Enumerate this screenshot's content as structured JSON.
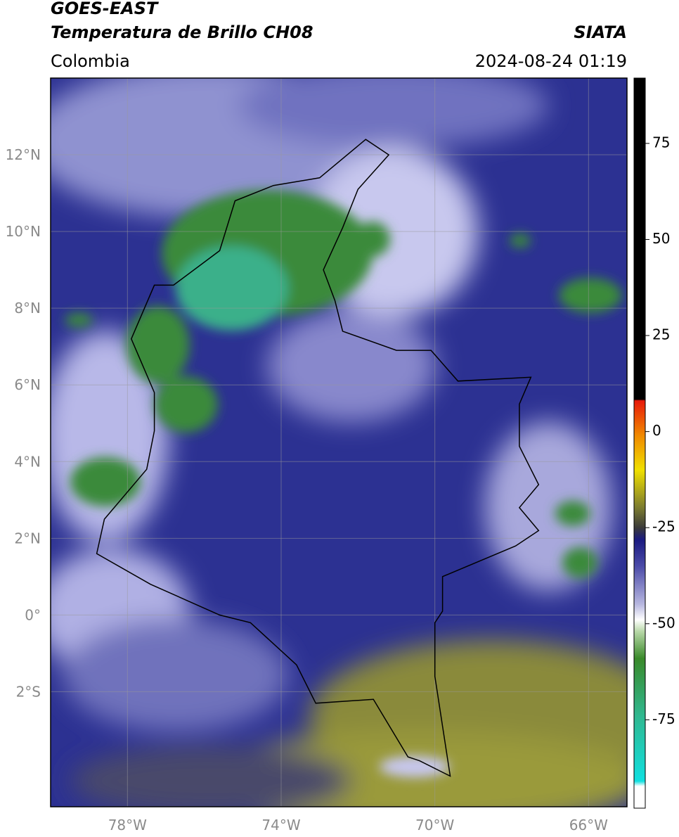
{
  "header": {
    "title": "GOES-EAST",
    "subtitle": "Temperatura de Brillo CH08",
    "source": "SIATA",
    "region": "Colombia",
    "timestamp": "2024-08-24 01:19"
  },
  "map": {
    "xlim": [
      -80,
      -65
    ],
    "ylim": [
      -5,
      14
    ],
    "xticks": [
      {
        "value": -78,
        "label": "78°W"
      },
      {
        "value": -74,
        "label": "74°W"
      },
      {
        "value": -70,
        "label": "70°W"
      },
      {
        "value": -66,
        "label": "66°W"
      }
    ],
    "yticks": [
      {
        "value": 12,
        "label": "12°N"
      },
      {
        "value": 10,
        "label": "10°N"
      },
      {
        "value": 8,
        "label": "8°N"
      },
      {
        "value": 6,
        "label": "6°N"
      },
      {
        "value": 4,
        "label": "4°N"
      },
      {
        "value": 2,
        "label": "2°N"
      },
      {
        "value": 0,
        "label": "0°"
      },
      {
        "value": -2,
        "label": "2°S"
      }
    ],
    "grid": true
  },
  "colorbar": {
    "lim": [
      -98,
      92
    ],
    "ticks": [
      75,
      50,
      25,
      0,
      -25,
      -50,
      -75
    ]
  }
}
